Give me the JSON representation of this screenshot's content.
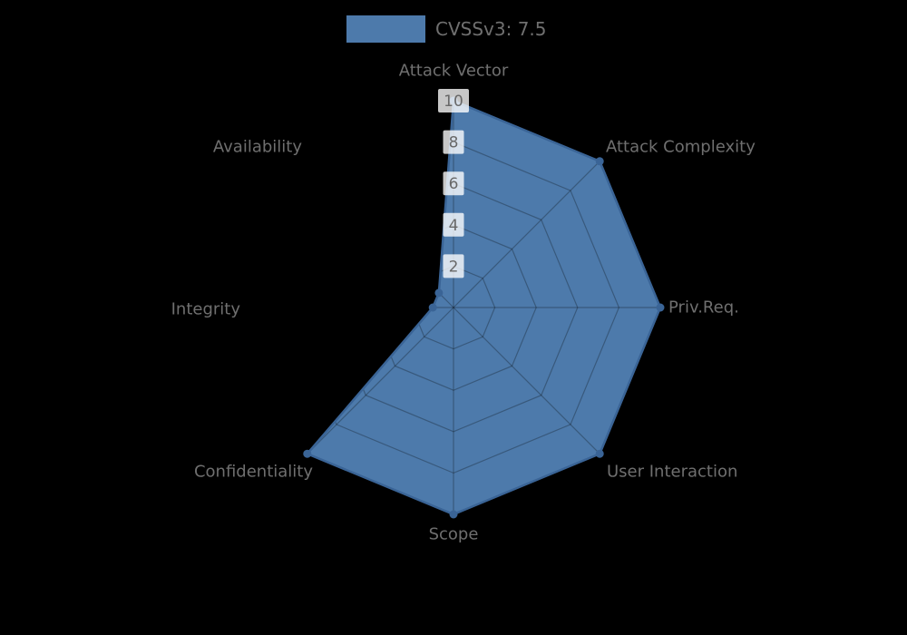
{
  "chart_data": {
    "type": "radar",
    "legend": "CVSSv3: 7.5",
    "categories": [
      "Attack Vector",
      "Attack Complexity",
      "Priv.Req.",
      "User Interaction",
      "Scope",
      "Confidentiality",
      "Integrity",
      "Availability"
    ],
    "series": [
      {
        "name": "CVSSv3: 7.5",
        "values": [
          10,
          10,
          10,
          10,
          10,
          10,
          1,
          1
        ]
      }
    ],
    "ticks": [
      2,
      4,
      6,
      8,
      10
    ],
    "rlim": [
      0,
      10
    ],
    "grid": "on",
    "legend_position": "top-center",
    "colors": {
      "background": "#000000",
      "fill": "#4d7aab",
      "stroke": "#3a6496",
      "marker": "#3a6496",
      "grid": "rgba(0,0,0,0.27)",
      "axis_label": "#6f6f6f",
      "tick_label": "#686868",
      "tick_box": "rgba(255,255,255,0.78)",
      "legend_text": "#6f6f6f"
    }
  }
}
